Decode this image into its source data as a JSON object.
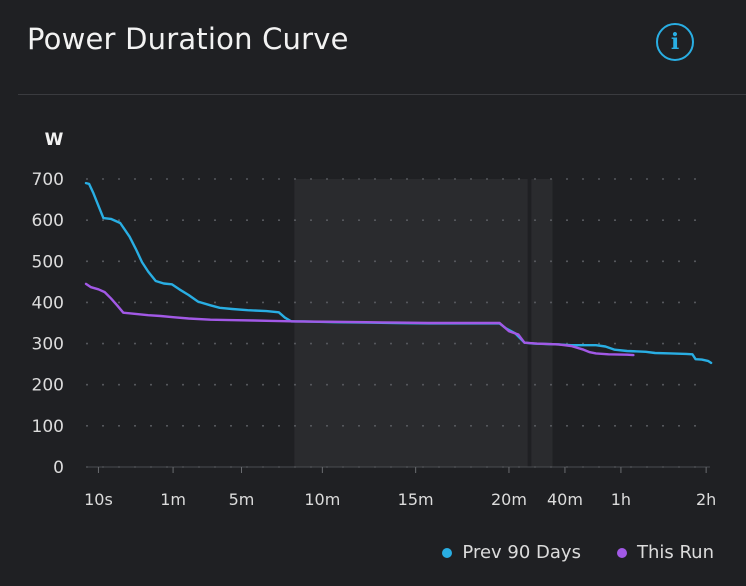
{
  "header": {
    "title": "Power Duration Curve",
    "info_icon": "info-circle-icon"
  },
  "colors": {
    "background": "#1f2023",
    "prev": "#29aee3",
    "run": "#a259e6",
    "grid": "#55575c",
    "text": "#dcdcdc",
    "band": "#2a2b2e"
  },
  "legend": [
    {
      "label": "Prev 90 Days",
      "color": "#29aee3"
    },
    {
      "label": "This Run",
      "color": "#a259e6"
    }
  ],
  "chart_data": {
    "type": "line",
    "title": "Power Duration Curve",
    "ylabel": "W",
    "ylim": [
      0,
      700
    ],
    "yticks": [
      0,
      100,
      200,
      300,
      400,
      500,
      600,
      700
    ],
    "xticks": [
      {
        "label": "10s",
        "t": 0.02
      },
      {
        "label": "1m",
        "t": 0.14
      },
      {
        "label": "5m",
        "t": 0.25
      },
      {
        "label": "10m",
        "t": 0.38
      },
      {
        "label": "15m",
        "t": 0.53
      },
      {
        "label": "20m",
        "t": 0.68
      },
      {
        "label": "40m",
        "t": 0.77
      },
      {
        "label": "1h",
        "t": 0.86
      },
      {
        "label": "2h",
        "t": 0.997
      }
    ],
    "grid": true,
    "legend_position": "bottom-right",
    "highlight_bands": [
      {
        "from": 0.335,
        "to": 0.71
      },
      {
        "from": 0.716,
        "to": 0.75
      }
    ],
    "series": [
      {
        "name": "Prev 90 Days",
        "points": [
          [
            0.0,
            690
          ],
          [
            0.005,
            688
          ],
          [
            0.012,
            665
          ],
          [
            0.02,
            635
          ],
          [
            0.028,
            605
          ],
          [
            0.04,
            603
          ],
          [
            0.055,
            593
          ],
          [
            0.07,
            560
          ],
          [
            0.08,
            530
          ],
          [
            0.09,
            498
          ],
          [
            0.1,
            475
          ],
          [
            0.112,
            452
          ],
          [
            0.125,
            446
          ],
          [
            0.138,
            444
          ],
          [
            0.15,
            432
          ],
          [
            0.165,
            418
          ],
          [
            0.18,
            402
          ],
          [
            0.2,
            393
          ],
          [
            0.215,
            387
          ],
          [
            0.235,
            384
          ],
          [
            0.26,
            381
          ],
          [
            0.29,
            379
          ],
          [
            0.31,
            376
          ],
          [
            0.32,
            363
          ],
          [
            0.33,
            354
          ],
          [
            0.35,
            354
          ],
          [
            0.4,
            352
          ],
          [
            0.45,
            351
          ],
          [
            0.5,
            350
          ],
          [
            0.55,
            349
          ],
          [
            0.6,
            349
          ],
          [
            0.665,
            349
          ],
          [
            0.675,
            337
          ],
          [
            0.69,
            325
          ],
          [
            0.705,
            302
          ],
          [
            0.72,
            300
          ],
          [
            0.76,
            298
          ],
          [
            0.78,
            296
          ],
          [
            0.82,
            296
          ],
          [
            0.835,
            293
          ],
          [
            0.85,
            285
          ],
          [
            0.87,
            282
          ],
          [
            0.9,
            280
          ],
          [
            0.915,
            277
          ],
          [
            0.94,
            276
          ],
          [
            0.965,
            275
          ],
          [
            0.975,
            274
          ],
          [
            0.98,
            262
          ],
          [
            0.99,
            261
          ],
          [
            1.0,
            258
          ],
          [
            1.005,
            253
          ]
        ]
      },
      {
        "name": "This Run",
        "points": [
          [
            0.0,
            445
          ],
          [
            0.008,
            437
          ],
          [
            0.02,
            432
          ],
          [
            0.03,
            425
          ],
          [
            0.04,
            410
          ],
          [
            0.05,
            393
          ],
          [
            0.06,
            375
          ],
          [
            0.08,
            372
          ],
          [
            0.1,
            369
          ],
          [
            0.12,
            367
          ],
          [
            0.14,
            364
          ],
          [
            0.165,
            361
          ],
          [
            0.2,
            358
          ],
          [
            0.23,
            357
          ],
          [
            0.27,
            356
          ],
          [
            0.3,
            355
          ],
          [
            0.34,
            354
          ],
          [
            0.4,
            353
          ],
          [
            0.45,
            352
          ],
          [
            0.5,
            351
          ],
          [
            0.55,
            350
          ],
          [
            0.6,
            350
          ],
          [
            0.665,
            350
          ],
          [
            0.68,
            330
          ],
          [
            0.695,
            322
          ],
          [
            0.705,
            302
          ],
          [
            0.725,
            300
          ],
          [
            0.76,
            298
          ],
          [
            0.78,
            294
          ],
          [
            0.8,
            285
          ],
          [
            0.81,
            279
          ],
          [
            0.82,
            276
          ],
          [
            0.84,
            274
          ],
          [
            0.87,
            273
          ],
          [
            0.88,
            272
          ]
        ]
      }
    ]
  }
}
